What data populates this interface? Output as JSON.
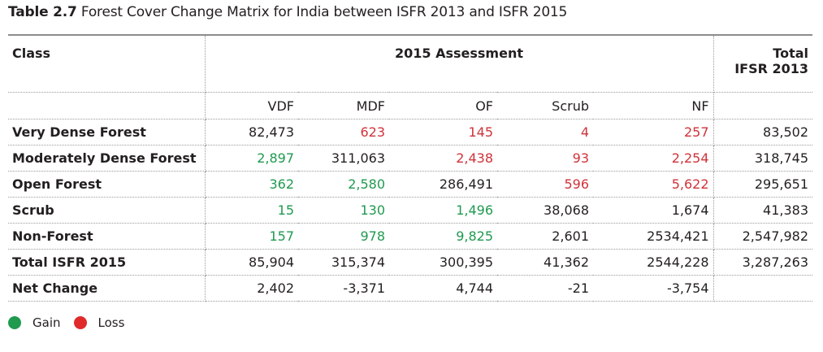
{
  "caption": {
    "number": "Table 2.7",
    "title": "Forest Cover Change Matrix for India between ISFR 2013 and ISFR 2015"
  },
  "table": {
    "class_header": "Class",
    "assessment_header": "2015 Assessment",
    "total_header_line1": "Total",
    "total_header_line2": "IFSR 2013",
    "sub_headers": [
      "VDF",
      "MDF",
      "OF",
      "Scrub",
      "NF"
    ],
    "rows": [
      {
        "label": "Very Dense Forest",
        "cells": [
          {
            "v": "82,473",
            "s": "neutral"
          },
          {
            "v": "623",
            "s": "loss"
          },
          {
            "v": "145",
            "s": "loss"
          },
          {
            "v": "4",
            "s": "loss"
          },
          {
            "v": "257",
            "s": "loss"
          }
        ],
        "total": "83,502"
      },
      {
        "label": "Moderately Dense Forest",
        "cells": [
          {
            "v": "2,897",
            "s": "gain"
          },
          {
            "v": "311,063",
            "s": "neutral"
          },
          {
            "v": "2,438",
            "s": "loss"
          },
          {
            "v": "93",
            "s": "loss"
          },
          {
            "v": "2,254",
            "s": "loss"
          }
        ],
        "total": "318,745"
      },
      {
        "label": "Open Forest",
        "cells": [
          {
            "v": "362",
            "s": "gain"
          },
          {
            "v": "2,580",
            "s": "gain"
          },
          {
            "v": "286,491",
            "s": "neutral"
          },
          {
            "v": "596",
            "s": "loss"
          },
          {
            "v": "5,622",
            "s": "loss"
          }
        ],
        "total": "295,651"
      },
      {
        "label": "Scrub",
        "cells": [
          {
            "v": "15",
            "s": "gain"
          },
          {
            "v": "130",
            "s": "gain"
          },
          {
            "v": "1,496",
            "s": "gain"
          },
          {
            "v": "38,068",
            "s": "neutral"
          },
          {
            "v": "1,674",
            "s": "neutral"
          }
        ],
        "total": "41,383"
      },
      {
        "label": "Non-Forest",
        "cells": [
          {
            "v": "157",
            "s": "gain"
          },
          {
            "v": "978",
            "s": "gain"
          },
          {
            "v": "9,825",
            "s": "gain"
          },
          {
            "v": "2,601",
            "s": "neutral"
          },
          {
            "v": "2534,421",
            "s": "neutral"
          }
        ],
        "total": "2,547,982"
      },
      {
        "label": "Total ISFR 2015",
        "cells": [
          {
            "v": "85,904",
            "s": "neutral"
          },
          {
            "v": "315,374",
            "s": "neutral"
          },
          {
            "v": "300,395",
            "s": "neutral"
          },
          {
            "v": "41,362",
            "s": "neutral"
          },
          {
            "v": "2544,228",
            "s": "neutral"
          }
        ],
        "total": "3,287,263"
      },
      {
        "label": "Net Change",
        "cells": [
          {
            "v": "2,402",
            "s": "neutral"
          },
          {
            "v": "-3,371",
            "s": "neutral"
          },
          {
            "v": "4,744",
            "s": "neutral"
          },
          {
            "v": "-21",
            "s": "neutral"
          },
          {
            "v": "-3,754",
            "s": "neutral"
          }
        ],
        "total": ""
      }
    ]
  },
  "legend": {
    "gain_label": "Gain",
    "loss_label": "Loss",
    "gain_color": "#1f9a4f",
    "loss_color": "#e02a2a"
  }
}
